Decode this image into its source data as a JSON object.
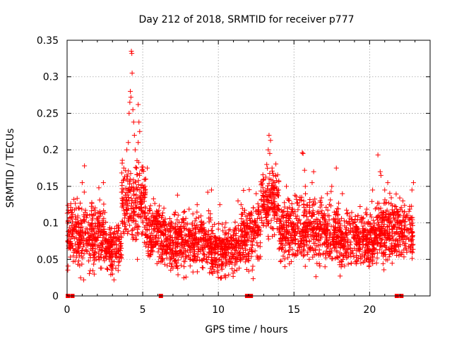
{
  "chart_data": {
    "type": "scatter",
    "title": "Day 212 of 2018, SRMTID for receiver p777",
    "xlabel": "GPS time / hours",
    "ylabel": "SRMTID / TECUs",
    "xlim": [
      0,
      24
    ],
    "ylim": [
      0,
      0.35
    ],
    "xticks": [
      0,
      5,
      10,
      15,
      20
    ],
    "xtick_labels": [
      "0",
      "5",
      "10",
      "15",
      "20"
    ],
    "yticks": [
      0,
      0.05,
      0.1,
      0.15,
      0.2,
      0.25,
      0.3,
      0.35
    ],
    "ytick_labels": [
      "0",
      "0.05",
      "0.1",
      "0.15",
      "0.2",
      "0.25",
      "0.3",
      "0.35"
    ],
    "grid": true,
    "marker": "+",
    "color": "#ff0000",
    "zero_markers_x": [
      0.05,
      0.35,
      6.2,
      11.9,
      12.15,
      21.8,
      22.1
    ],
    "data_extent_hours": [
      0,
      22.9
    ],
    "background_band": [
      {
        "start": 0.0,
        "end": 2.5,
        "mean": 0.085,
        "spread": 0.028
      },
      {
        "start": 2.5,
        "end": 3.6,
        "mean": 0.065,
        "spread": 0.022
      },
      {
        "start": 3.6,
        "end": 5.2,
        "mean": 0.13,
        "spread": 0.035
      },
      {
        "start": 5.2,
        "end": 6.2,
        "mean": 0.09,
        "spread": 0.028
      },
      {
        "start": 6.2,
        "end": 9.5,
        "mean": 0.075,
        "spread": 0.025
      },
      {
        "start": 9.5,
        "end": 11.5,
        "mean": 0.062,
        "spread": 0.022
      },
      {
        "start": 11.5,
        "end": 12.8,
        "mean": 0.085,
        "spread": 0.03
      },
      {
        "start": 12.8,
        "end": 14.0,
        "mean": 0.13,
        "spread": 0.03
      },
      {
        "start": 14.0,
        "end": 18.0,
        "mean": 0.09,
        "spread": 0.028
      },
      {
        "start": 18.0,
        "end": 20.5,
        "mean": 0.078,
        "spread": 0.025
      },
      {
        "start": 20.5,
        "end": 22.9,
        "mean": 0.09,
        "spread": 0.027
      }
    ],
    "highlighted_points": [
      {
        "x": 0.35,
        "y": 0.085
      },
      {
        "x": 0.6,
        "y": 0.12
      },
      {
        "x": 1.0,
        "y": 0.155
      },
      {
        "x": 1.15,
        "y": 0.178
      },
      {
        "x": 1.1,
        "y": 0.022
      },
      {
        "x": 2.1,
        "y": 0.148
      },
      {
        "x": 2.4,
        "y": 0.155
      },
      {
        "x": 3.0,
        "y": 0.03
      },
      {
        "x": 3.1,
        "y": 0.022
      },
      {
        "x": 3.75,
        "y": 0.175
      },
      {
        "x": 3.95,
        "y": 0.2
      },
      {
        "x": 4.05,
        "y": 0.21
      },
      {
        "x": 4.1,
        "y": 0.25
      },
      {
        "x": 4.15,
        "y": 0.265
      },
      {
        "x": 4.18,
        "y": 0.28
      },
      {
        "x": 4.22,
        "y": 0.272
      },
      {
        "x": 4.25,
        "y": 0.335
      },
      {
        "x": 4.28,
        "y": 0.332
      },
      {
        "x": 4.3,
        "y": 0.305
      },
      {
        "x": 4.35,
        "y": 0.255
      },
      {
        "x": 4.4,
        "y": 0.238
      },
      {
        "x": 4.45,
        "y": 0.22
      },
      {
        "x": 4.5,
        "y": 0.2
      },
      {
        "x": 4.6,
        "y": 0.175
      },
      {
        "x": 4.7,
        "y": 0.262
      },
      {
        "x": 4.75,
        "y": 0.238
      },
      {
        "x": 4.8,
        "y": 0.225
      },
      {
        "x": 4.7,
        "y": 0.21
      },
      {
        "x": 4.95,
        "y": 0.172
      },
      {
        "x": 5.3,
        "y": 0.175
      },
      {
        "x": 5.2,
        "y": 0.16
      },
      {
        "x": 4.65,
        "y": 0.05
      },
      {
        "x": 6.4,
        "y": 0.12
      },
      {
        "x": 7.3,
        "y": 0.138
      },
      {
        "x": 8.6,
        "y": 0.125
      },
      {
        "x": 9.3,
        "y": 0.142
      },
      {
        "x": 9.55,
        "y": 0.145
      },
      {
        "x": 10.1,
        "y": 0.125
      },
      {
        "x": 10.2,
        "y": 0.025
      },
      {
        "x": 11.3,
        "y": 0.13
      },
      {
        "x": 12.5,
        "y": 0.14
      },
      {
        "x": 13.0,
        "y": 0.16
      },
      {
        "x": 13.2,
        "y": 0.18
      },
      {
        "x": 13.3,
        "y": 0.2
      },
      {
        "x": 13.35,
        "y": 0.22
      },
      {
        "x": 13.45,
        "y": 0.213
      },
      {
        "x": 13.4,
        "y": 0.195
      },
      {
        "x": 13.55,
        "y": 0.175
      },
      {
        "x": 13.6,
        "y": 0.168
      },
      {
        "x": 13.75,
        "y": 0.155
      },
      {
        "x": 14.5,
        "y": 0.15
      },
      {
        "x": 15.55,
        "y": 0.196
      },
      {
        "x": 15.6,
        "y": 0.195
      },
      {
        "x": 15.7,
        "y": 0.172
      },
      {
        "x": 15.75,
        "y": 0.15
      },
      {
        "x": 15.4,
        "y": 0.135
      },
      {
        "x": 16.2,
        "y": 0.155
      },
      {
        "x": 16.3,
        "y": 0.17
      },
      {
        "x": 17.2,
        "y": 0.14
      },
      {
        "x": 17.5,
        "y": 0.15
      },
      {
        "x": 17.8,
        "y": 0.175
      },
      {
        "x": 18.2,
        "y": 0.14
      },
      {
        "x": 20.2,
        "y": 0.145
      },
      {
        "x": 20.55,
        "y": 0.193
      },
      {
        "x": 20.7,
        "y": 0.17
      },
      {
        "x": 20.75,
        "y": 0.165
      },
      {
        "x": 21.0,
        "y": 0.145
      },
      {
        "x": 21.2,
        "y": 0.155
      },
      {
        "x": 22.9,
        "y": 0.155
      },
      {
        "x": 22.8,
        "y": 0.145
      },
      {
        "x": 22.2,
        "y": 0.13
      }
    ]
  }
}
